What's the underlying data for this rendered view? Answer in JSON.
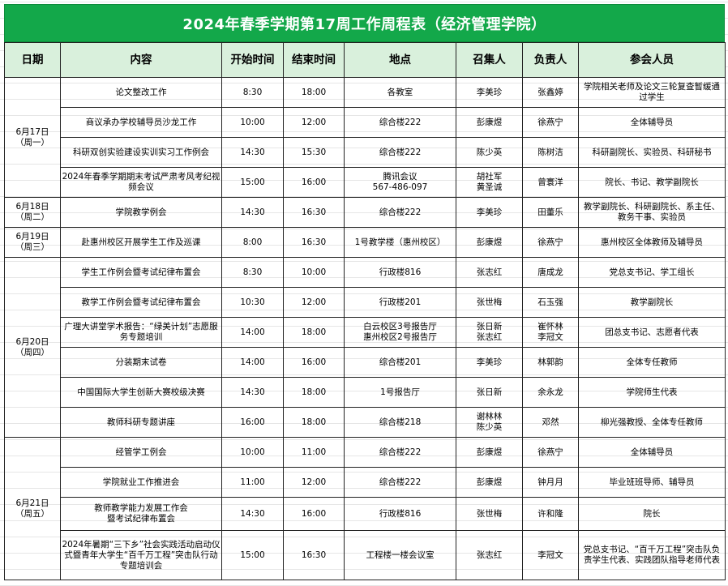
{
  "title": "2024年春季学期第17周工作周程表（经济管理学院）",
  "colors": {
    "title_bg": "#13a84a",
    "header_bg": "#d9f0dc"
  },
  "headers": [
    "日期",
    "内容",
    "开始时间",
    "结束时间",
    "地点",
    "召集人",
    "负责人",
    "参会人员"
  ],
  "days": [
    {
      "date": "6月17日\n（周一）",
      "rows": [
        {
          "content": "论文整改工作",
          "start": "8:30",
          "end": "18:00",
          "location": "各教室",
          "convener": "李美珍",
          "owner": "张鑫婷",
          "attendees": "学院相关老师及论文三轮复查暂缓通过学生"
        },
        {
          "content": "商议承办学校辅导员沙龙工作",
          "start": "10:00",
          "end": "12:00",
          "location": "综合楼222",
          "convener": "彭康煜",
          "owner": "徐燕宁",
          "attendees": "全体辅导员"
        },
        {
          "content": "科研双创实验建设实训实习工作例会",
          "start": "14:30",
          "end": "15:30",
          "location": "综合楼222",
          "convener": "陈少英",
          "owner": "陈树洁",
          "attendees": "科研副院长、实验员、科研秘书"
        },
        {
          "content": "2024年春季学期期末考试严肃考风考纪视频会议",
          "start": "15:00",
          "end": "16:00",
          "location": "腾讯会议\n567-486-097",
          "convener": "胡社军\n黄圣诚",
          "owner": "曾寰洋",
          "attendees": "院长、书记、教学副院长"
        }
      ]
    },
    {
      "date": "6月18日\n（周二）",
      "rows": [
        {
          "content": "学院教学例会",
          "start": "14:30",
          "end": "16:30",
          "location": "综合楼222",
          "convener": "李美珍",
          "owner": "田董乐",
          "attendees": "教学副院长、科研副院长、系主任、教务干事、实验员"
        }
      ]
    },
    {
      "date": "6月19日\n（周三）",
      "rows": [
        {
          "content": "赴惠州校区开展学生工作及巡课",
          "start": "8:00",
          "end": "16:30",
          "location": "1号教学楼（惠州校区）",
          "convener": "彭康煜",
          "owner": "徐燕宁",
          "attendees": "惠州校区全体教师及辅导员"
        }
      ]
    },
    {
      "date": "6月20日\n（周四）",
      "rows": [
        {
          "content": "学生工作例会暨考试纪律布置会",
          "start": "8:30",
          "end": "10:00",
          "location": "行政楼816",
          "convener": "张志红",
          "owner": "唐成龙",
          "attendees": "党总支书记、学工组长"
        },
        {
          "content": "教学工作例会暨考试纪律布置会",
          "start": "10:30",
          "end": "12:00",
          "location": "行政楼201",
          "convener": "张世梅",
          "owner": "石玉强",
          "attendees": "教学副院长"
        },
        {
          "content": "广理大讲堂学术报告：“绿美计划”志愿服务专题培训",
          "start": "14:00",
          "end": "18:00",
          "location": "白云校区3号报告厅\n惠州校区2号报告厅",
          "convener": "张日新\n张志红",
          "owner": "崔怀林\n李冠文",
          "attendees": "团总支书记、志愿者代表"
        },
        {
          "content": "分装期末试卷",
          "start": "14:00",
          "end": "16:00",
          "location": "综合楼201",
          "convener": "李美珍",
          "owner": "林郭韵",
          "attendees": "全体专任教师"
        },
        {
          "content": "中国国际大学生创新大赛校级决赛",
          "start": "14:30",
          "end": "18:00",
          "location": "1号报告厅",
          "convener": "张日新",
          "owner": "余永龙",
          "attendees": "学院师生代表"
        },
        {
          "content": "教师科研专题讲座",
          "start": "16:00",
          "end": "18:00",
          "location": "综合楼218",
          "convener": "谢林林\n陈少英",
          "owner": "邓然",
          "attendees": "柳光强教授、全体专任教师"
        }
      ]
    },
    {
      "date": "6月21日\n（周五）",
      "rows": [
        {
          "content": "经管学工例会",
          "start": "10:00",
          "end": "11:00",
          "location": "综合楼222",
          "convener": "彭康煜",
          "owner": "徐燕宁",
          "attendees": "全体辅导员"
        },
        {
          "content": "学院就业工作推进会",
          "start": "11:00",
          "end": "12:00",
          "location": "综合楼222",
          "convener": "彭康煜",
          "owner": "钟月月",
          "attendees": "毕业班班导师、辅导员"
        },
        {
          "content": "教师教学能力发展工作会\n暨考试纪律布置会",
          "start": "14:30",
          "end": "16:00",
          "location": "行政楼816",
          "convener": "张世梅",
          "owner": "许和隆",
          "attendees": "院长"
        },
        {
          "content": "2024年暑期“三下乡”社会实践活动启动仪式暨青年大学生“百千万工程”突击队行动专题培训会",
          "start": "15:00",
          "end": "16:30",
          "location": "工程楼一楼会议室",
          "convener": "张志红",
          "owner": "李冠文",
          "attendees": "党总支书记、“百千万工程”突击队负责学生代表、实践团队指导老师代表"
        }
      ]
    }
  ]
}
